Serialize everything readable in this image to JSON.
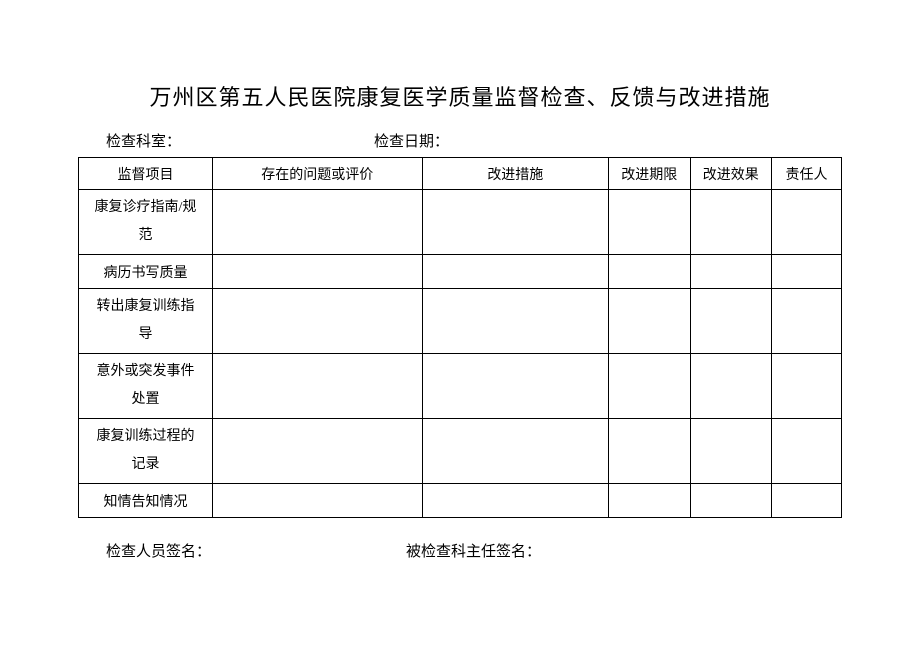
{
  "title": "万州区第五人民医院康复医学质量监督检查、反馈与改进措施",
  "meta": {
    "dept_label": "检查科室：",
    "date_label": "检查日期："
  },
  "table": {
    "headers": {
      "col1": "监督项目",
      "col2": "存在的问题或评价",
      "col3": "改进措施",
      "col4": "改进期限",
      "col5": "改进效果",
      "col6": "责任人"
    },
    "rows": [
      {
        "label_line1": "康复诊疗指南/规",
        "label_line2": "范",
        "lines": 2
      },
      {
        "label_line1": "病历书写质量",
        "lines": 1
      },
      {
        "label_line1": "转出康复训练指",
        "label_line2": "导",
        "lines": 2
      },
      {
        "label_line1": "意外或突发事件",
        "label_line2": "处置",
        "lines": 2
      },
      {
        "label_line1": "康复训练过程的",
        "label_line2": "记录",
        "lines": 2
      },
      {
        "label_line1": "知情告知情况",
        "lines": 1
      }
    ]
  },
  "footer": {
    "inspector_label": "检查人员签名：",
    "director_label": "被检查科主任签名："
  },
  "style": {
    "background_color": "#ffffff",
    "border_color": "#000000",
    "title_fontsize": 22,
    "body_fontsize": 14
  }
}
